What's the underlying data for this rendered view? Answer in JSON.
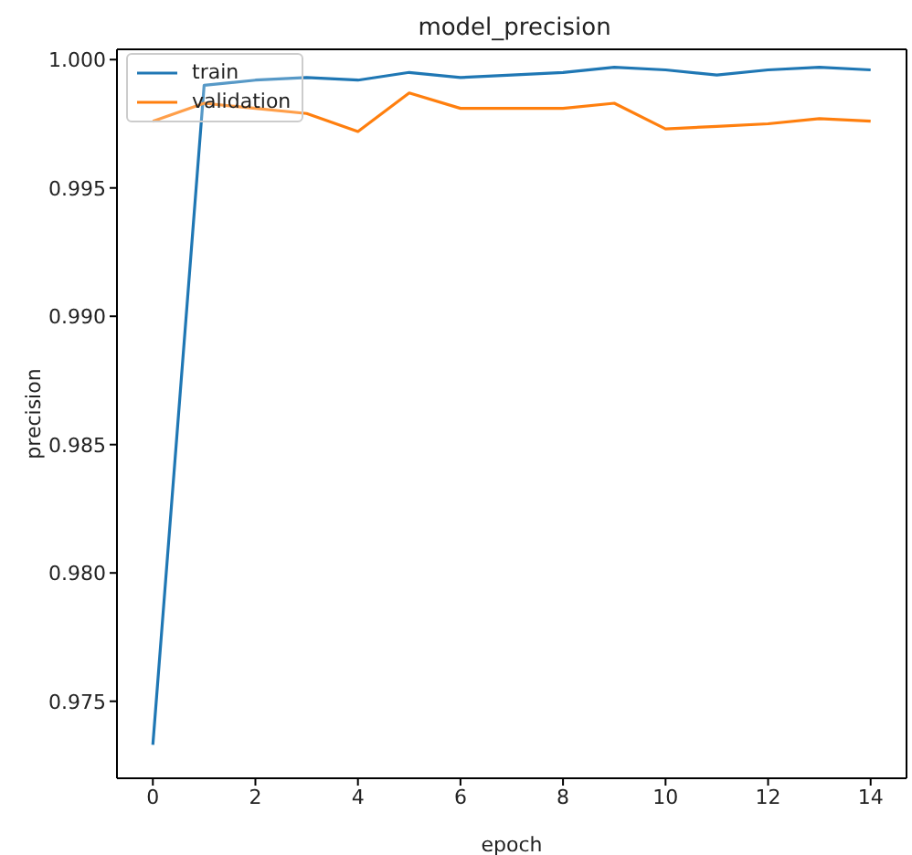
{
  "chart_data": {
    "type": "line",
    "title": "model_precision",
    "xlabel": "epoch",
    "ylabel": "precision",
    "x": [
      0,
      1,
      2,
      3,
      4,
      5,
      6,
      7,
      8,
      9,
      10,
      11,
      12,
      13,
      14
    ],
    "series": [
      {
        "name": "train",
        "color": "#1f77b4",
        "values": [
          0.9733,
          0.999,
          0.9992,
          0.9993,
          0.9992,
          0.9995,
          0.9993,
          0.9994,
          0.9995,
          0.9997,
          0.9996,
          0.9994,
          0.9996,
          0.9997,
          0.9996
        ]
      },
      {
        "name": "validation",
        "color": "#ff7f0e",
        "values": [
          0.9976,
          0.9983,
          0.9981,
          0.9979,
          0.9972,
          0.9987,
          0.9981,
          0.9981,
          0.9981,
          0.9983,
          0.9973,
          0.9974,
          0.9975,
          0.9977,
          0.9976
        ]
      }
    ],
    "xlim": [
      -0.7,
      14.7
    ],
    "xticks": [
      0,
      2,
      4,
      6,
      8,
      10,
      12,
      14
    ],
    "ylim": [
      0.972,
      1.0004
    ],
    "yticks": [
      {
        "value": 0.975,
        "label": "0.975"
      },
      {
        "value": 0.98,
        "label": "0.980"
      },
      {
        "value": 0.985,
        "label": "0.985"
      },
      {
        "value": 0.99,
        "label": "0.990"
      },
      {
        "value": 0.995,
        "label": "0.995"
      },
      {
        "value": 1.0,
        "label": "1.000"
      }
    ],
    "legend": "top left",
    "grid": false,
    "marker": "none",
    "line_style": "solid"
  }
}
